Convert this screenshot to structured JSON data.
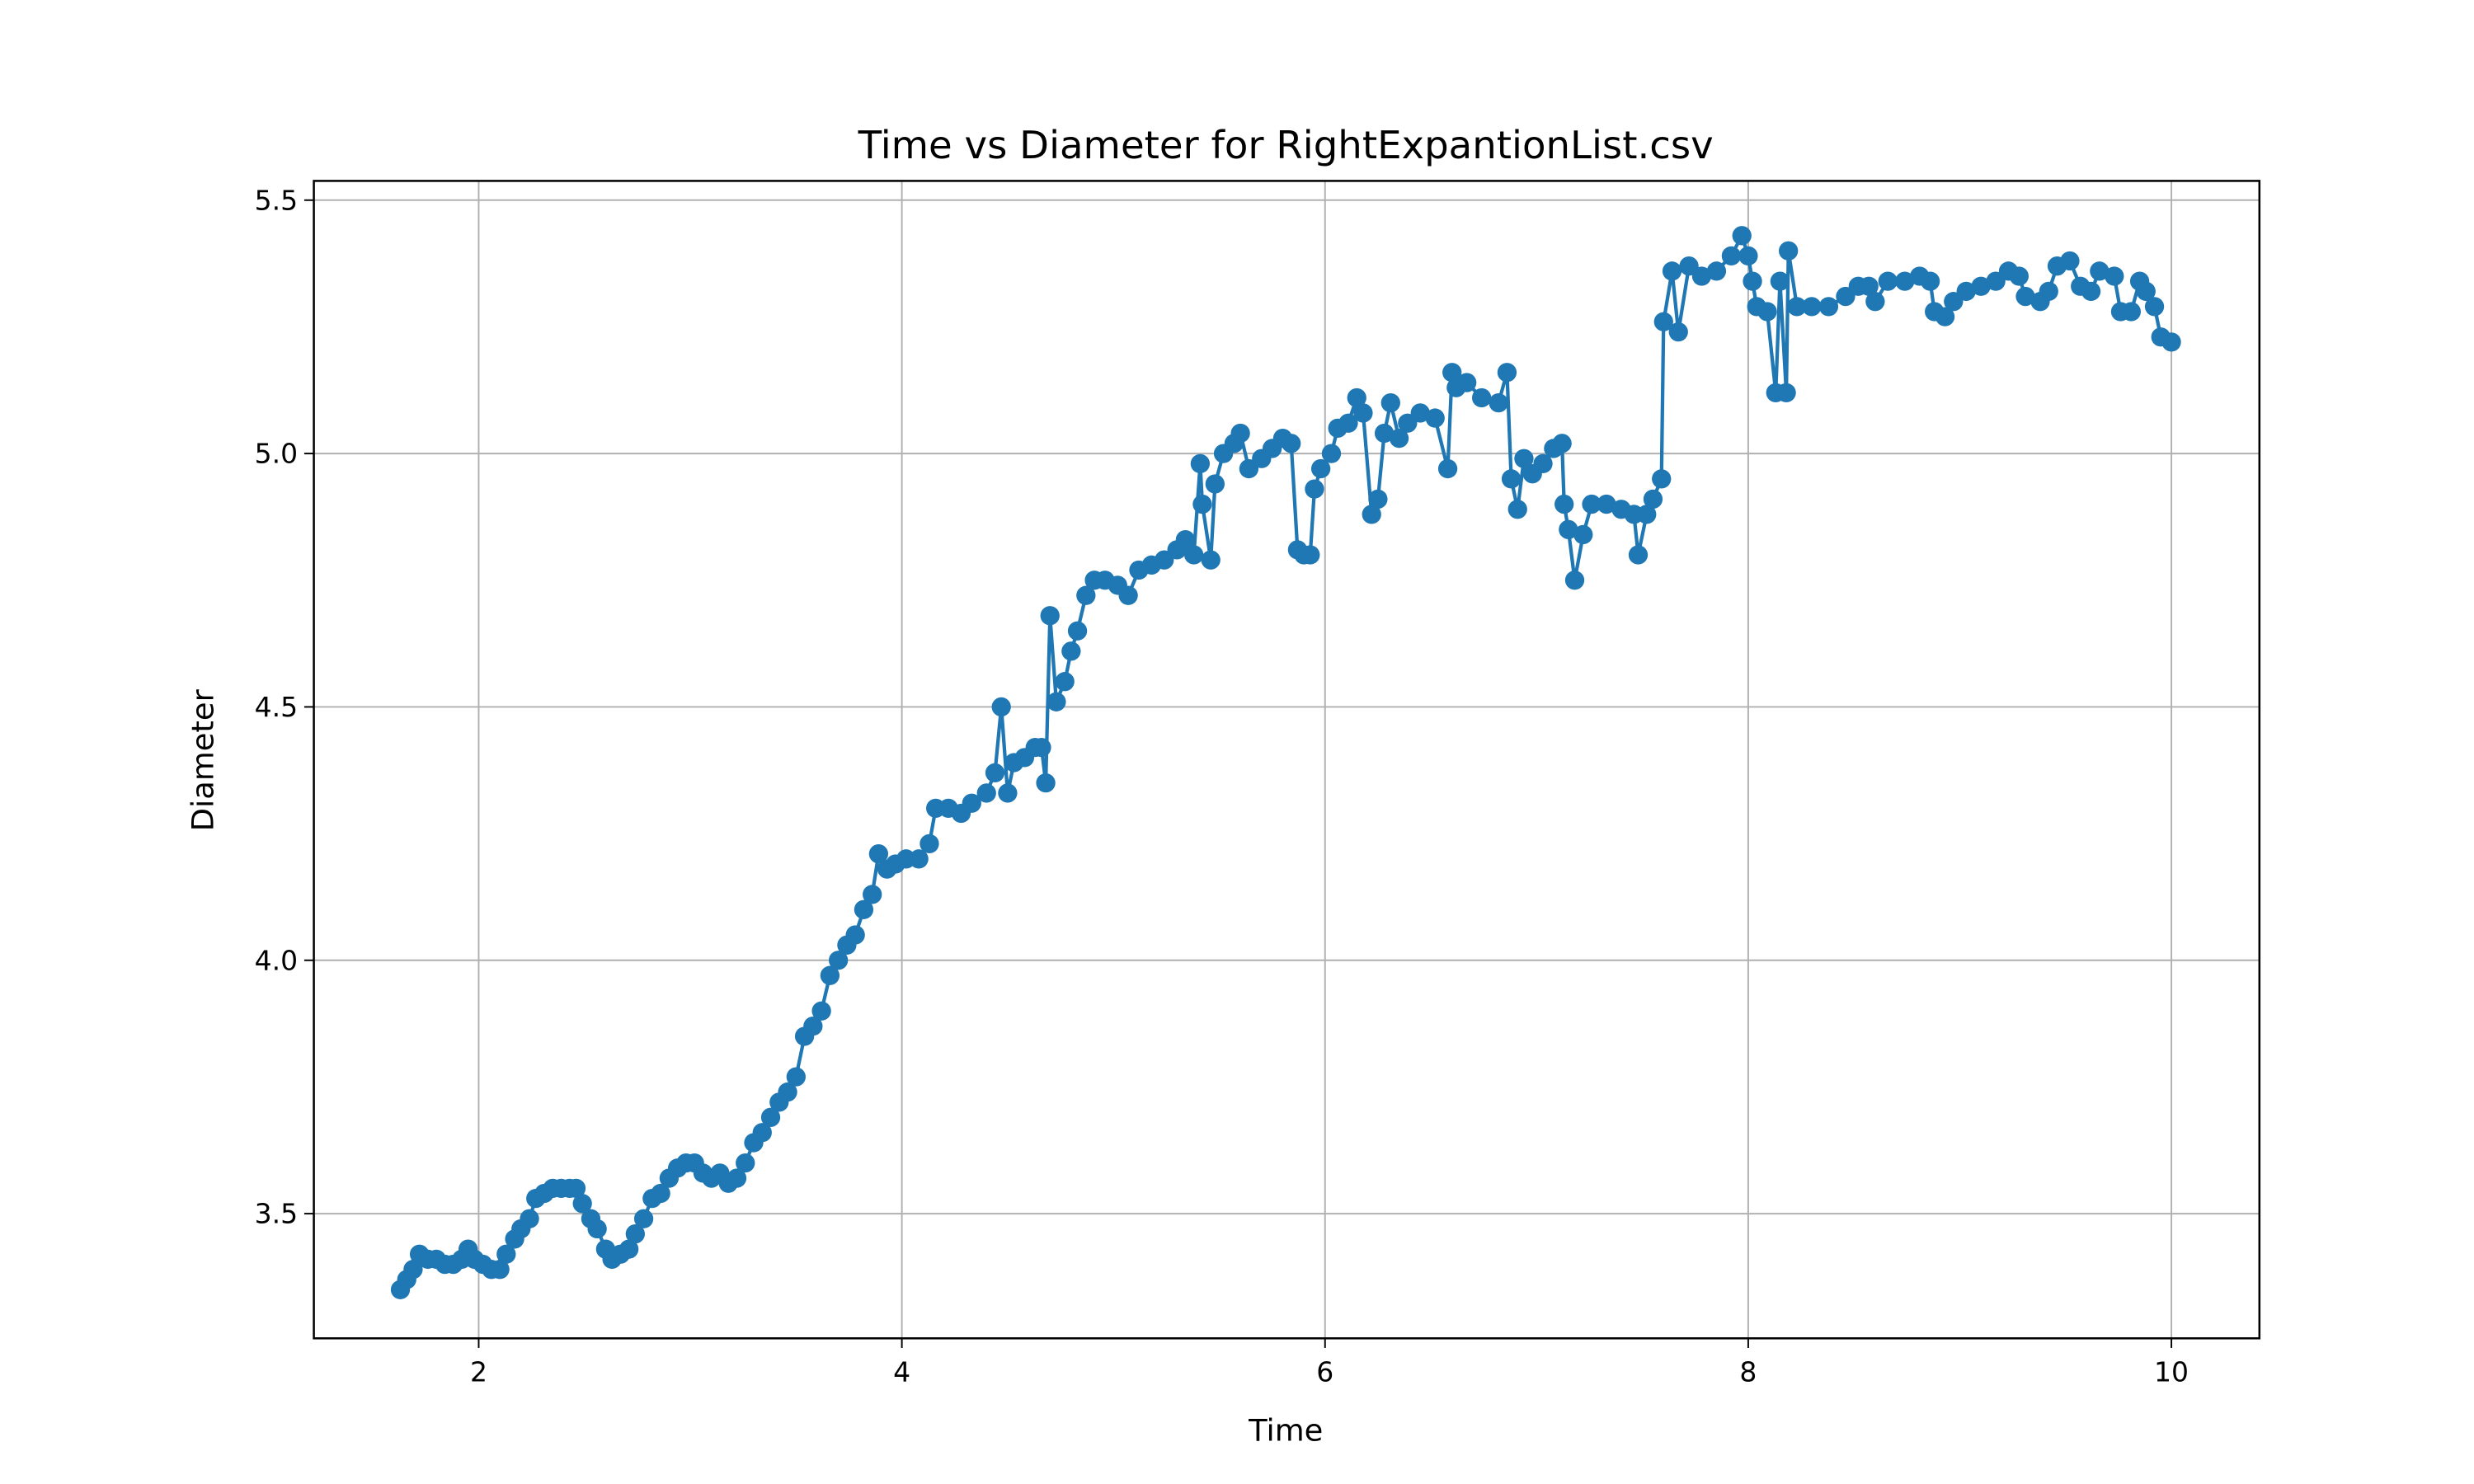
{
  "chart_data": {
    "type": "line",
    "title": "Time vs Diameter for RightExpantionList.csv",
    "x_label": "Time",
    "y_label": "Diameter",
    "color": "#1f77b4",
    "markers": true,
    "grid": true,
    "xlim": [
      1.221,
      10.416
    ],
    "ylim": [
      3.254,
      5.538
    ],
    "xticks": [
      2,
      4,
      6,
      8,
      10
    ],
    "yticks": [
      3.5,
      {
        "value": 4,
        "label": "4.0"
      },
      4.5,
      {
        "value": 5,
        "label": "5.0"
      },
      5.5
    ],
    "x": [
      1.63,
      1.66,
      1.69,
      1.72,
      1.76,
      1.8,
      1.84,
      1.88,
      1.92,
      1.95,
      1.98,
      2.02,
      2.06,
      2.1,
      2.13,
      2.17,
      2.2,
      2.24,
      2.27,
      2.31,
      2.35,
      2.39,
      2.43,
      2.46,
      2.49,
      2.53,
      2.56,
      2.6,
      2.63,
      2.67,
      2.71,
      2.74,
      2.78,
      2.82,
      2.86,
      2.9,
      2.94,
      2.98,
      3.02,
      3.06,
      3.1,
      3.14,
      3.18,
      3.22,
      3.26,
      3.3,
      3.34,
      3.38,
      3.42,
      3.46,
      3.5,
      3.54,
      3.58,
      3.62,
      3.66,
      3.7,
      3.74,
      3.78,
      3.82,
      3.86,
      3.89,
      3.93,
      3.97,
      4.02,
      4.08,
      4.13,
      4.16,
      4.22,
      4.28,
      4.33,
      4.4,
      4.44,
      4.47,
      4.5,
      4.53,
      4.58,
      4.63,
      4.66,
      4.68,
      4.7,
      4.73,
      4.77,
      4.8,
      4.83,
      4.87,
      4.91,
      4.96,
      5.02,
      5.07,
      5.12,
      5.18,
      5.24,
      5.3,
      5.34,
      5.38,
      5.41,
      5.42,
      5.46,
      5.48,
      5.52,
      5.57,
      5.6,
      5.64,
      5.7,
      5.75,
      5.8,
      5.84,
      5.87,
      5.9,
      5.93,
      5.95,
      5.98,
      6.03,
      6.06,
      6.11,
      6.15,
      6.18,
      6.22,
      6.25,
      6.28,
      6.31,
      6.35,
      6.39,
      6.45,
      6.52,
      6.58,
      6.6,
      6.62,
      6.67,
      6.74,
      6.82,
      6.86,
      6.88,
      6.91,
      6.94,
      6.98,
      7.03,
      7.08,
      7.12,
      7.13,
      7.15,
      7.18,
      7.22,
      7.26,
      7.33,
      7.4,
      7.46,
      7.48,
      7.52,
      7.55,
      7.59,
      7.6,
      7.64,
      7.67,
      7.72,
      7.78,
      7.85,
      7.92,
      7.97,
      8.0,
      8.02,
      8.04,
      8.09,
      8.13,
      8.15,
      8.18,
      8.19,
      8.23,
      8.3,
      8.38,
      8.46,
      8.52,
      8.57,
      8.6,
      8.66,
      8.74,
      8.81,
      8.86,
      8.88,
      8.93,
      8.97,
      9.03,
      9.1,
      9.17,
      9.23,
      9.28,
      9.31,
      9.38,
      9.42,
      9.46,
      9.52,
      9.57,
      9.62,
      9.66,
      9.73,
      9.76,
      9.81,
      9.85,
      9.88,
      9.92,
      9.95,
      10.0
    ],
    "values": [
      3.35,
      3.37,
      3.39,
      3.42,
      3.41,
      3.41,
      3.4,
      3.4,
      3.41,
      3.43,
      3.41,
      3.4,
      3.39,
      3.39,
      3.42,
      3.45,
      3.47,
      3.49,
      3.53,
      3.54,
      3.55,
      3.55,
      3.55,
      3.55,
      3.52,
      3.49,
      3.47,
      3.43,
      3.41,
      3.42,
      3.43,
      3.46,
      3.49,
      3.53,
      3.54,
      3.57,
      3.59,
      3.6,
      3.6,
      3.58,
      3.57,
      3.58,
      3.56,
      3.57,
      3.6,
      3.64,
      3.66,
      3.69,
      3.72,
      3.74,
      3.77,
      3.85,
      3.87,
      3.9,
      3.97,
      4.0,
      4.03,
      4.05,
      4.1,
      4.13,
      4.21,
      4.18,
      4.19,
      4.2,
      4.2,
      4.23,
      4.3,
      4.3,
      4.29,
      4.31,
      4.33,
      4.37,
      4.5,
      4.33,
      4.39,
      4.4,
      4.42,
      4.42,
      4.35,
      4.68,
      4.51,
      4.55,
      4.61,
      4.65,
      4.72,
      4.75,
      4.75,
      4.74,
      4.72,
      4.77,
      4.78,
      4.79,
      4.81,
      4.83,
      4.8,
      4.98,
      4.9,
      4.79,
      4.94,
      5.0,
      5.02,
      5.04,
      4.97,
      4.99,
      5.01,
      5.03,
      5.02,
      4.81,
      4.8,
      4.8,
      4.93,
      4.97,
      5.0,
      5.05,
      5.06,
      5.11,
      5.08,
      4.88,
      4.91,
      5.04,
      5.1,
      5.03,
      5.06,
      5.08,
      5.07,
      4.97,
      5.16,
      5.13,
      5.14,
      5.11,
      5.1,
      5.16,
      4.95,
      4.89,
      4.99,
      4.96,
      4.98,
      5.01,
      5.02,
      4.9,
      4.85,
      4.75,
      4.84,
      4.9,
      4.9,
      4.89,
      4.88,
      4.8,
      4.88,
      4.91,
      4.95,
      5.26,
      5.36,
      5.24,
      5.37,
      5.35,
      5.36,
      5.39,
      5.43,
      5.39,
      5.34,
      5.29,
      5.28,
      5.12,
      5.34,
      5.12,
      5.4,
      5.29,
      5.29,
      5.29,
      5.31,
      5.33,
      5.33,
      5.3,
      5.34,
      5.34,
      5.35,
      5.34,
      5.28,
      5.27,
      5.3,
      5.32,
      5.33,
      5.34,
      5.36,
      5.35,
      5.31,
      5.3,
      5.32,
      5.37,
      5.38,
      5.33,
      5.32,
      5.36,
      5.35,
      5.28,
      5.28,
      5.34,
      5.32,
      5.29,
      5.23,
      5.22
    ]
  }
}
